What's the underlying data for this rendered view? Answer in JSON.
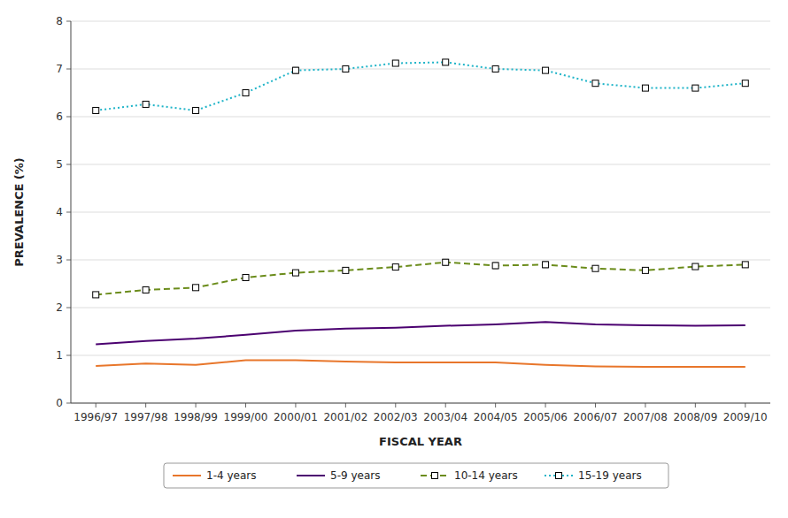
{
  "chart_data": {
    "type": "line",
    "x_label": "FISCAL YEAR",
    "y_label": "PREVALENCE (%)",
    "categories": [
      "1996/97",
      "1997/98",
      "1998/99",
      "1999/00",
      "2000/01",
      "2001/02",
      "2002/03",
      "2003/04",
      "2004/05",
      "2005/06",
      "2006/07",
      "2007/08",
      "2008/09",
      "2009/10"
    ],
    "series": [
      {
        "name": "1-4 years",
        "color": "#E8762B",
        "line_style": "solid",
        "marker": "none",
        "values": [
          0.78,
          0.83,
          0.8,
          0.9,
          0.9,
          0.87,
          0.85,
          0.85,
          0.85,
          0.8,
          0.77,
          0.76,
          0.76,
          0.76
        ]
      },
      {
        "name": "5-9 years",
        "color": "#4B0070",
        "line_style": "solid",
        "marker": "none",
        "values": [
          1.23,
          1.3,
          1.35,
          1.43,
          1.52,
          1.56,
          1.58,
          1.62,
          1.65,
          1.7,
          1.65,
          1.63,
          1.62,
          1.63
        ]
      },
      {
        "name": "10-14 years",
        "color": "#6B8C1B",
        "line_style": "dashed",
        "marker": "square",
        "values": [
          2.27,
          2.37,
          2.42,
          2.63,
          2.73,
          2.78,
          2.85,
          2.95,
          2.88,
          2.9,
          2.82,
          2.78,
          2.86,
          2.9
        ],
        "errors": [
          0.04,
          0.04,
          0.04,
          0.04,
          0.04,
          0.04,
          0.04,
          0.06,
          0.06,
          0.06,
          0.04,
          0.04,
          0.04,
          0.04
        ]
      },
      {
        "name": "15-19 years",
        "color": "#1FB4C8",
        "line_style": "dotted",
        "marker": "square",
        "values": [
          6.13,
          6.26,
          6.13,
          6.5,
          6.97,
          7.0,
          7.12,
          7.14,
          7.0,
          6.97,
          6.7,
          6.6,
          6.6,
          6.7
        ],
        "errors": [
          0.05,
          0.05,
          0.05,
          0.06,
          0.06,
          0.05,
          0.05,
          0.05,
          0.05,
          0.05,
          0.05,
          0.05,
          0.05,
          0.05
        ]
      }
    ],
    "ylim": [
      0,
      8
    ],
    "yticks": [
      0,
      1,
      2,
      3,
      4,
      5,
      6,
      7,
      8
    ],
    "grid": true,
    "legend": "bottom"
  }
}
